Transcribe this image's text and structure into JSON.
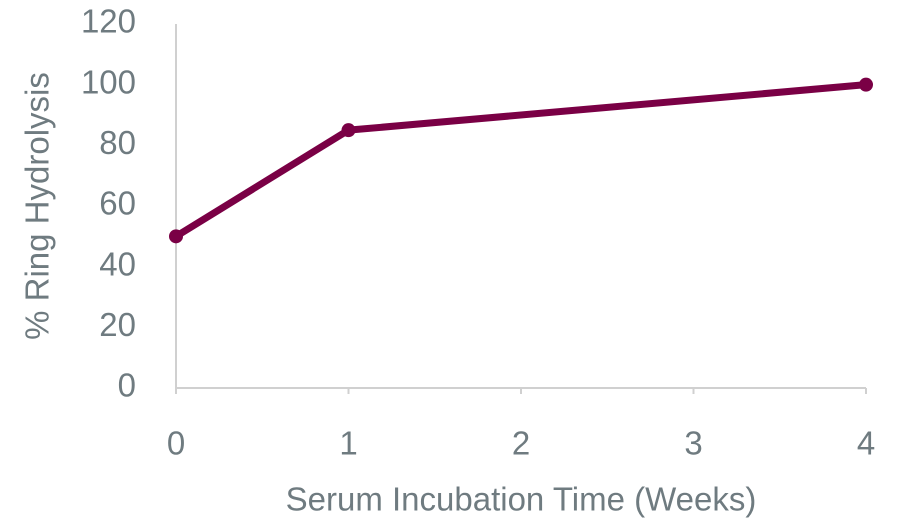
{
  "chart_data": {
    "type": "line",
    "x_label": "Serum Incubation Time (Weeks)",
    "y_label": "% Ring Hydrolysis",
    "x": [
      0,
      1,
      4
    ],
    "values": [
      50,
      85,
      100
    ],
    "color": "#7a0045",
    "xlim": [
      0,
      4
    ],
    "xticks": [
      0,
      1,
      2,
      3,
      4
    ],
    "ylim": [
      0,
      120
    ],
    "yticks": [
      0,
      20,
      40,
      60,
      80,
      100,
      120
    ]
  }
}
